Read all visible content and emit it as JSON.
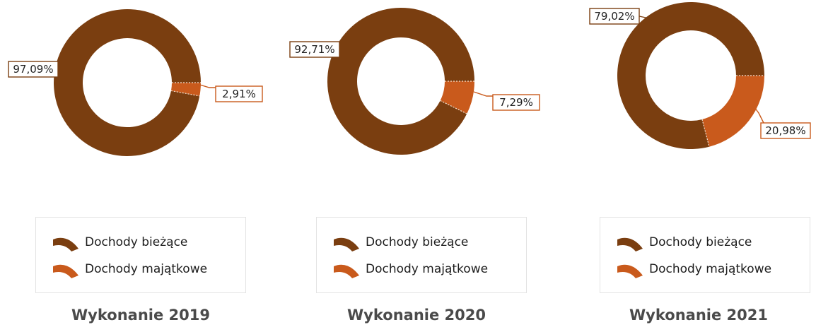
{
  "colors": {
    "current": "#7a3e10",
    "property": "#c95a1c"
  },
  "legend": {
    "current_label": "Dochody bieżące",
    "property_label": "Dochody majątkowe"
  },
  "chart_data": [
    {
      "type": "pie",
      "title": "Wykonanie 2019",
      "categories": [
        "Dochody bieżące",
        "Dochody majątkowe"
      ],
      "values": [
        97.09,
        2.91
      ],
      "data_labels": [
        "97,09%",
        "2,91%"
      ],
      "legend": "bottom"
    },
    {
      "type": "pie",
      "title": "Wykonanie 2020",
      "categories": [
        "Dochody bieżące",
        "Dochody majątkowe"
      ],
      "values": [
        92.71,
        7.29
      ],
      "data_labels": [
        "92,71%",
        "7,29%"
      ],
      "legend": "bottom"
    },
    {
      "type": "pie",
      "title": "Wykonanie 2021",
      "categories": [
        "Dochody bieżące",
        "Dochody majątkowe"
      ],
      "values": [
        79.02,
        20.98
      ],
      "data_labels": [
        "79,02%",
        "20,98%"
      ],
      "legend": "bottom"
    }
  ]
}
